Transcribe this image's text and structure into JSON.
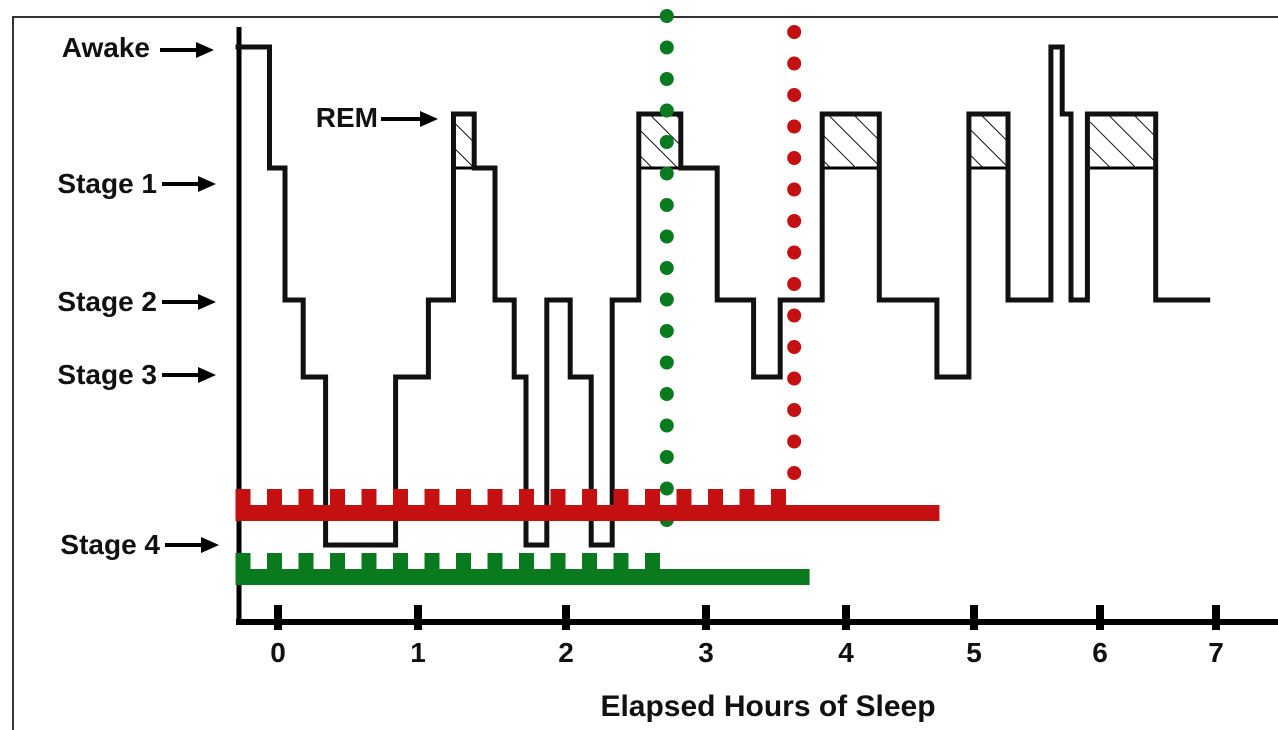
{
  "chart_data": {
    "type": "line",
    "title": "",
    "xlabel": "Elapsed Hours of Sleep",
    "ylabel": "",
    "x_ticks": [
      "0",
      "1",
      "2",
      "3",
      "4",
      "5",
      "6",
      "7"
    ],
    "stages": [
      "Awake",
      "REM",
      "Stage 1",
      "Stage 2",
      "Stage 3",
      "Stage 4"
    ],
    "xlim": [
      -0.25,
      7.45
    ],
    "hypnogram": [
      {
        "x": -0.25,
        "stage": "Awake"
      },
      {
        "x": -0.05,
        "stage": "Awake"
      },
      {
        "x": -0.05,
        "stage": "Stage 1"
      },
      {
        "x": 0.05,
        "stage": "Stage 1"
      },
      {
        "x": 0.05,
        "stage": "Stage 2"
      },
      {
        "x": 0.18,
        "stage": "Stage 2"
      },
      {
        "x": 0.18,
        "stage": "Stage 3"
      },
      {
        "x": 0.34,
        "stage": "Stage 3"
      },
      {
        "x": 0.34,
        "stage": "Stage 4"
      },
      {
        "x": 0.84,
        "stage": "Stage 4"
      },
      {
        "x": 0.84,
        "stage": "Stage 3"
      },
      {
        "x": 1.07,
        "stage": "Stage 3"
      },
      {
        "x": 1.07,
        "stage": "Stage 2"
      },
      {
        "x": 1.24,
        "stage": "Stage 2"
      },
      {
        "x": 1.24,
        "stage": "REM"
      },
      {
        "x": 1.38,
        "stage": "REM"
      },
      {
        "x": 1.38,
        "stage": "Stage 1"
      },
      {
        "x": 1.52,
        "stage": "Stage 1"
      },
      {
        "x": 1.52,
        "stage": "Stage 2"
      },
      {
        "x": 1.65,
        "stage": "Stage 2"
      },
      {
        "x": 1.65,
        "stage": "Stage 3"
      },
      {
        "x": 1.73,
        "stage": "Stage 3"
      },
      {
        "x": 1.73,
        "stage": "Stage 4"
      },
      {
        "x": 1.87,
        "stage": "Stage 4"
      },
      {
        "x": 1.87,
        "stage": "Stage 2"
      },
      {
        "x": 2.03,
        "stage": "Stage 2"
      },
      {
        "x": 2.03,
        "stage": "Stage 3"
      },
      {
        "x": 2.18,
        "stage": "Stage 3"
      },
      {
        "x": 2.18,
        "stage": "Stage 4"
      },
      {
        "x": 2.33,
        "stage": "Stage 4"
      },
      {
        "x": 2.33,
        "stage": "Stage 2"
      },
      {
        "x": 2.52,
        "stage": "Stage 2"
      },
      {
        "x": 2.52,
        "stage": "REM"
      },
      {
        "x": 2.82,
        "stage": "REM"
      },
      {
        "x": 2.82,
        "stage": "Stage 1"
      },
      {
        "x": 3.08,
        "stage": "Stage 1"
      },
      {
        "x": 3.08,
        "stage": "Stage 2"
      },
      {
        "x": 3.34,
        "stage": "Stage 2"
      },
      {
        "x": 3.34,
        "stage": "Stage 3"
      },
      {
        "x": 3.53,
        "stage": "Stage 3"
      },
      {
        "x": 3.53,
        "stage": "Stage 2"
      },
      {
        "x": 3.83,
        "stage": "Stage 2"
      },
      {
        "x": 3.83,
        "stage": "REM"
      },
      {
        "x": 4.26,
        "stage": "REM"
      },
      {
        "x": 4.26,
        "stage": "Stage 2"
      },
      {
        "x": 4.71,
        "stage": "Stage 2"
      },
      {
        "x": 4.71,
        "stage": "Stage 3"
      },
      {
        "x": 4.96,
        "stage": "Stage 3"
      },
      {
        "x": 4.96,
        "stage": "REM"
      },
      {
        "x": 5.27,
        "stage": "REM"
      },
      {
        "x": 5.27,
        "stage": "Stage 2"
      },
      {
        "x": 5.61,
        "stage": "Stage 2"
      },
      {
        "x": 5.61,
        "stage": "Awake"
      },
      {
        "x": 5.7,
        "stage": "Awake"
      },
      {
        "x": 5.7,
        "stage": "REM"
      },
      {
        "x": 5.77,
        "stage": "REM"
      },
      {
        "x": 5.77,
        "stage": "Stage 2"
      },
      {
        "x": 5.9,
        "stage": "Stage 2"
      },
      {
        "x": 5.9,
        "stage": "REM"
      },
      {
        "x": 6.48,
        "stage": "REM"
      },
      {
        "x": 6.48,
        "stage": "Stage 2"
      },
      {
        "x": 6.95,
        "stage": "Stage 2"
      }
    ],
    "rem_periods": [
      [
        1.24,
        1.38
      ],
      [
        2.52,
        2.82
      ],
      [
        3.83,
        4.26
      ],
      [
        4.96,
        5.27
      ],
      [
        5.9,
        6.48
      ]
    ],
    "marker_lines": [
      {
        "name": "green dotted",
        "color": "#0a7a1e",
        "x": 2.72,
        "from_stage": "Awake",
        "to_stage": "Stage 4"
      },
      {
        "name": "red dotted",
        "color": "#c41010",
        "x": 3.63,
        "from_stage": "Awake",
        "to_stage": "Stage 3"
      }
    ],
    "timeline_bars": [
      {
        "name": "red bar",
        "color": "#c41010",
        "start": -0.25,
        "end": 4.73,
        "notched_until": 3.63
      },
      {
        "name": "green bar",
        "color": "#0a7a1e",
        "start": -0.25,
        "end": 3.74,
        "notched_until": 2.76
      }
    ],
    "grid": false,
    "legend": "none"
  }
}
